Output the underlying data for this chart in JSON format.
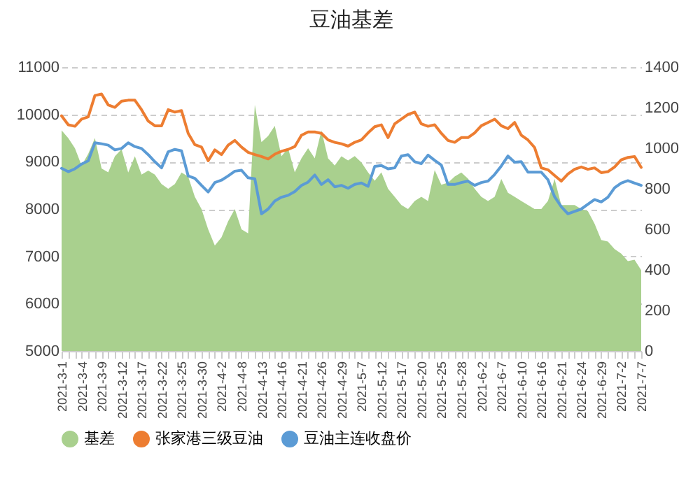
{
  "chart_data": {
    "type": "line",
    "title": "豆油基差",
    "categories": [
      "2021-3-1",
      null,
      null,
      "2021-3-4",
      null,
      null,
      "2021-3-9",
      null,
      null,
      "2021-3-12",
      null,
      null,
      "2021-3-17",
      null,
      null,
      "2021-3-22",
      null,
      null,
      "2021-3-25",
      null,
      null,
      "2021-3-30",
      null,
      null,
      "2021-4-2",
      null,
      null,
      "2021-4-8",
      null,
      null,
      "2021-4-13",
      null,
      null,
      "2021-4-16",
      null,
      null,
      "2021-4-21",
      null,
      null,
      "2021-4-26",
      null,
      null,
      "2021-4-29",
      null,
      null,
      "2021-5-7",
      null,
      null,
      "2021-5-12",
      null,
      null,
      "2021-5-17",
      null,
      null,
      "2021-5-20",
      null,
      null,
      "2021-5-25",
      null,
      null,
      "2021-5-28",
      null,
      null,
      "2021-6-2",
      null,
      null,
      "2021-6-7",
      null,
      null,
      "2021-6-10",
      null,
      null,
      "2021-6-16",
      null,
      null,
      "2021-6-21",
      null,
      null,
      "2021-6-24",
      null,
      null,
      "2021-6-29",
      null,
      null,
      "2021-7-2",
      null,
      null,
      "2021-7-7"
    ],
    "series": [
      {
        "name": "基差",
        "type": "area",
        "axis": "y2",
        "color": "#a9d08e",
        "values": [
          1088,
          1050,
          1000,
          915,
          972,
          1050,
          900,
          881,
          960,
          995,
          880,
          960,
          870,
          890,
          870,
          823,
          800,
          823,
          880,
          860,
          760,
          700,
          600,
          520,
          560,
          640,
          700,
          600,
          580,
          1214,
          1030,
          1060,
          1110,
          960,
          1000,
          881,
          950,
          1000,
          950,
          1088,
          950,
          915,
          960,
          940,
          961,
          930,
          881,
          840,
          881,
          800,
          760,
          720,
          700,
          740,
          760,
          740,
          892,
          820,
          830,
          860,
          880,
          850,
          800,
          760,
          740,
          760,
          848,
          780,
          760,
          740,
          720,
          700,
          700,
          740,
          848,
          720,
          720,
          720,
          700,
          690,
          628,
          547,
          540,
          503,
          480,
          443,
          450,
          398
        ]
      },
      {
        "name": "张家港三级豆油",
        "color": "#ed7d31",
        "values": [
          9970,
          9780,
          9750,
          9900,
          9950,
          10400,
          10430,
          10200,
          10150,
          10280,
          10300,
          10300,
          10100,
          9860,
          9760,
          9760,
          10100,
          10050,
          10080,
          9600,
          9360,
          9310,
          9020,
          9250,
          9150,
          9350,
          9450,
          9310,
          9200,
          9150,
          9110,
          9060,
          9160,
          9220,
          9260,
          9320,
          9560,
          9630,
          9630,
          9600,
          9460,
          9410,
          9380,
          9330,
          9410,
          9460,
          9610,
          9740,
          9780,
          9510,
          9800,
          9900,
          10000,
          10050,
          9800,
          9750,
          9780,
          9600,
          9450,
          9410,
          9510,
          9510,
          9610,
          9760,
          9830,
          9900,
          9760,
          9700,
          9830,
          9560,
          9460,
          9300,
          8870,
          8830,
          8710,
          8590,
          8740,
          8840,
          8890,
          8840,
          8870,
          8770,
          8790,
          8890,
          9040,
          9090,
          9110,
          8880
        ]
      },
      {
        "name": "豆油主连收盘价",
        "color": "#5b9bd5",
        "values": [
          8860,
          8790,
          8850,
          8950,
          9020,
          9400,
          9380,
          9350,
          9250,
          9280,
          9400,
          9320,
          9280,
          9150,
          9000,
          8870,
          9210,
          9260,
          9230,
          8700,
          8650,
          8500,
          8360,
          8560,
          8610,
          8700,
          8800,
          8820,
          8660,
          8640,
          7900,
          8000,
          8170,
          8250,
          8290,
          8370,
          8500,
          8570,
          8720,
          8520,
          8620,
          8470,
          8500,
          8440,
          8520,
          8550,
          8480,
          8900,
          8920,
          8850,
          8870,
          9120,
          9150,
          9000,
          8960,
          9140,
          9030,
          8930,
          8520,
          8520,
          8560,
          8590,
          8500,
          8560,
          8590,
          8730,
          8910,
          9120,
          8990,
          9000,
          8780,
          8780,
          8780,
          8620,
          8260,
          8050,
          7900,
          7950,
          8000,
          8100,
          8200,
          8150,
          8250,
          8450,
          8550,
          8600,
          8550,
          8500
        ]
      }
    ],
    "ylim": [
      5000,
      11000
    ],
    "yticks": [
      5000,
      6000,
      7000,
      8000,
      9000,
      10000,
      11000
    ],
    "y2lim": [
      0,
      1400
    ],
    "y2ticks": [
      0,
      200,
      400,
      600,
      800,
      1000,
      1200,
      1400
    ],
    "grid": "y",
    "legend": "bottom"
  }
}
